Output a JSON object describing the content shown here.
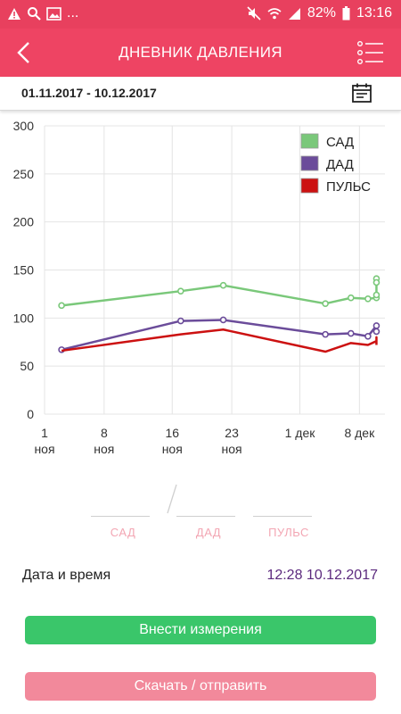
{
  "statusbar": {
    "left_icons": [
      "warning-icon",
      "search-icon",
      "image-icon",
      "more-dots"
    ],
    "more": "...",
    "battery": "82%",
    "time": "13:16"
  },
  "appbar": {
    "title": "ДНЕВНИК ДАВЛЕНИЯ",
    "back_icon": "chevron-left-icon",
    "menu_icon": "list-menu-icon"
  },
  "datebar": {
    "range": "01.11.2017 - 10.12.2017",
    "icon": "calendar-icon"
  },
  "chart_data": {
    "type": "line",
    "title": "",
    "xlabel": "",
    "ylabel": "",
    "ylim": [
      0,
      300
    ],
    "yticks": [
      "0",
      "50",
      "100",
      "150",
      "200",
      "250",
      "300"
    ],
    "xlim": [
      "2017-11-01",
      "2017-12-11"
    ],
    "xticks": [
      {
        "date": "2017-11-01",
        "line1": "1",
        "line2": "ноя"
      },
      {
        "date": "2017-11-08",
        "line1": "8",
        "line2": "ноя"
      },
      {
        "date": "2017-11-16",
        "line1": "16",
        "line2": "ноя"
      },
      {
        "date": "2017-11-23",
        "line1": "23",
        "line2": "ноя"
      },
      {
        "date": "2017-12-01",
        "line1": "1 дек",
        "line2": ""
      },
      {
        "date": "2017-12-08",
        "line1": "8 дек",
        "line2": ""
      }
    ],
    "grid": true,
    "legend_position": "top-right",
    "series": [
      {
        "name": "САД",
        "color": "#7ac87a",
        "points": [
          {
            "x": "2017-11-03",
            "y": 113
          },
          {
            "x": "2017-11-17",
            "y": 128
          },
          {
            "x": "2017-11-22",
            "y": 134
          },
          {
            "x": "2017-12-04",
            "y": 115
          },
          {
            "x": "2017-12-07",
            "y": 121
          },
          {
            "x": "2017-12-09",
            "y": 120
          },
          {
            "x": "2017-12-10",
            "y": 121
          },
          {
            "x": "2017-12-10",
            "y": 141
          },
          {
            "x": "2017-12-10",
            "y": 137
          },
          {
            "x": "2017-12-10",
            "y": 124
          }
        ]
      },
      {
        "name": "ДАД",
        "color": "#6b4c9a",
        "points": [
          {
            "x": "2017-11-03",
            "y": 67
          },
          {
            "x": "2017-11-17",
            "y": 97
          },
          {
            "x": "2017-11-22",
            "y": 98
          },
          {
            "x": "2017-12-04",
            "y": 83
          },
          {
            "x": "2017-12-07",
            "y": 84
          },
          {
            "x": "2017-12-09",
            "y": 81
          },
          {
            "x": "2017-12-10",
            "y": 92
          },
          {
            "x": "2017-12-10",
            "y": 86
          }
        ]
      },
      {
        "name": "ПУЛЬС",
        "color": "#cc1111",
        "points": [
          {
            "x": "2017-11-03",
            "y": 66
          },
          {
            "x": "2017-11-17",
            "y": 83
          },
          {
            "x": "2017-11-22",
            "y": 88
          },
          {
            "x": "2017-12-04",
            "y": 65
          },
          {
            "x": "2017-12-07",
            "y": 74
          },
          {
            "x": "2017-12-09",
            "y": 72
          },
          {
            "x": "2017-12-10",
            "y": 76
          },
          {
            "x": "2017-12-10",
            "y": 80
          },
          {
            "x": "2017-12-10",
            "y": 72
          }
        ]
      }
    ]
  },
  "inputs": {
    "sad_label": "САД",
    "dad_label": "ДАД",
    "pulse_label": "ПУЛЬС"
  },
  "datetime": {
    "label": "Дата и время",
    "value": "12:28 10.12.2017"
  },
  "buttons": {
    "measure": "Внести измерения",
    "download": "Скачать / отправить"
  },
  "colors": {
    "statusbar": "#e8405e",
    "appbar": "#ee4463",
    "measure_button": "#3ac66a",
    "download_button": "#f2899b",
    "datetime_value": "#5c2a7e"
  }
}
